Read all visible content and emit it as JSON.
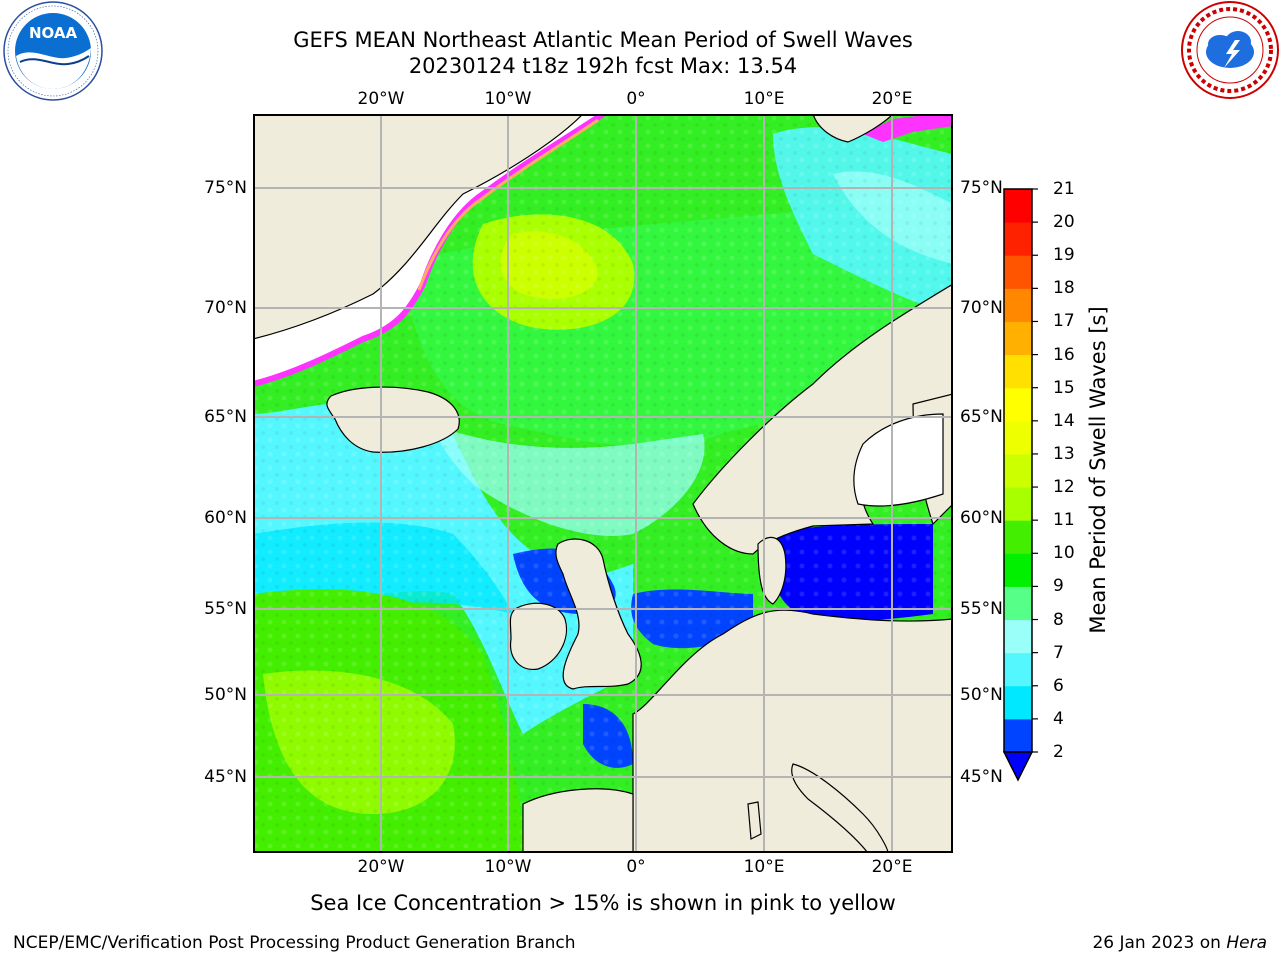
{
  "header": {
    "title_line1": "GEFS MEAN Northeast Atlantic Mean Period of Swell Waves",
    "title_line2": "20230124 t18z 192h fcst   Max: 13.54"
  },
  "logos": {
    "left": {
      "name": "noaa-logo",
      "text": "NOAA",
      "ring_text": "NATIONAL OCEANIC AND ATMOSPHERIC ADMINISTRATION · U.S. DEPARTMENT OF COMMERCE"
    },
    "right": {
      "name": "national-weather-service-logo",
      "ring_text": "NATIONAL WEATHER SERVICE"
    }
  },
  "axes": {
    "lon_ticks": [
      "20°W",
      "10°W",
      "0°",
      "10°E",
      "20°E"
    ],
    "lat_ticks": [
      "75°N",
      "70°N",
      "65°N",
      "60°N",
      "55°N",
      "50°N",
      "45°N"
    ],
    "lon_values": [
      -20,
      -10,
      0,
      10,
      20
    ],
    "lat_values": [
      75,
      70,
      65,
      60,
      55,
      50,
      45
    ],
    "gridlines": true
  },
  "colorbar": {
    "title": "Mean Period of Swell Waves [s]",
    "levels": [
      "2",
      "4",
      "6",
      "7",
      "8",
      "9",
      "10",
      "11",
      "12",
      "13",
      "14",
      "15",
      "16",
      "17",
      "18",
      "19",
      "20",
      "21"
    ],
    "colors": [
      "#0044ff",
      "#00e8ff",
      "#55f7ff",
      "#99fff8",
      "#55ff88",
      "#00f000",
      "#44ee00",
      "#a8ff00",
      "#ccff00",
      "#eeff00",
      "#ffff00",
      "#ffe000",
      "#ffb000",
      "#ff8800",
      "#ff5500",
      "#ff2200",
      "#ff0000"
    ],
    "extend": "min",
    "under_color": "#0000ff"
  },
  "map": {
    "land_color": "#efecdc",
    "ice_color": "#ffffff",
    "ice_edge_color": "#ff33ff",
    "max_value": 13.54
  },
  "caption": "Sea Ice Concentration > 15% is shown in pink to yellow",
  "footer": {
    "left": "NCEP/EMC/Verification Post Processing Product Generation Branch",
    "right_prefix": "26 Jan 2023 on ",
    "right_machine": "Hera"
  }
}
